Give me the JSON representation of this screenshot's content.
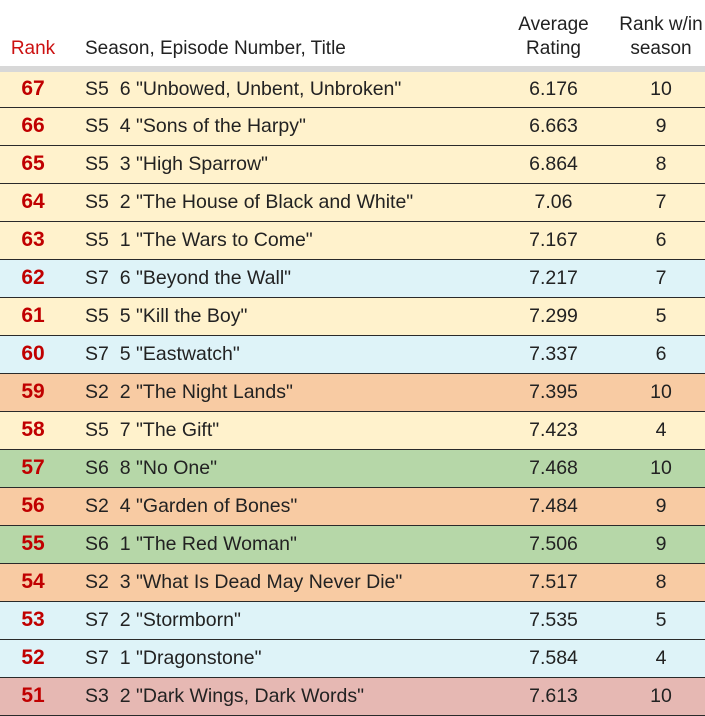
{
  "header": {
    "rank": "Rank",
    "title": "Season, Episode Number, Title",
    "avg_line1": "Average",
    "avg_line2": "Rating",
    "rws_line1": "Rank w/in",
    "rws_line2": "season"
  },
  "row_colors": {
    "S2": "#f8cba3",
    "S3": "#e6b8b3",
    "S5": "#fff2cc",
    "S6": "#b6d7a8",
    "S7": "#def3f8"
  },
  "rows": [
    {
      "rank": "67",
      "season": "S5",
      "episode": "6",
      "title": "\"Unbowed, Unbent, Unbroken\"",
      "avg": "6.176",
      "rank_in_season": "10"
    },
    {
      "rank": "66",
      "season": "S5",
      "episode": "4",
      "title": "\"Sons of the Harpy\"",
      "avg": "6.663",
      "rank_in_season": "9"
    },
    {
      "rank": "65",
      "season": "S5",
      "episode": "3",
      "title": "\"High Sparrow\"",
      "avg": "6.864",
      "rank_in_season": "8"
    },
    {
      "rank": "64",
      "season": "S5",
      "episode": "2",
      "title": "\"The House of Black and White\"",
      "avg": "7.06",
      "rank_in_season": "7"
    },
    {
      "rank": "63",
      "season": "S5",
      "episode": "1",
      "title": "\"The Wars to Come\"",
      "avg": "7.167",
      "rank_in_season": "6"
    },
    {
      "rank": "62",
      "season": "S7",
      "episode": "6",
      "title": "\"Beyond the Wall\"",
      "avg": "7.217",
      "rank_in_season": "7"
    },
    {
      "rank": "61",
      "season": "S5",
      "episode": "5",
      "title": "\"Kill the Boy\"",
      "avg": "7.299",
      "rank_in_season": "5"
    },
    {
      "rank": "60",
      "season": "S7",
      "episode": "5",
      "title": "\"Eastwatch\"",
      "avg": "7.337",
      "rank_in_season": "6"
    },
    {
      "rank": "59",
      "season": "S2",
      "episode": "2",
      "title": "\"The Night Lands\"",
      "avg": "7.395",
      "rank_in_season": "10"
    },
    {
      "rank": "58",
      "season": "S5",
      "episode": "7",
      "title": "\"The Gift\"",
      "avg": "7.423",
      "rank_in_season": "4"
    },
    {
      "rank": "57",
      "season": "S6",
      "episode": "8",
      "title": "\"No One\"",
      "avg": "7.468",
      "rank_in_season": "10"
    },
    {
      "rank": "56",
      "season": "S2",
      "episode": "4",
      "title": "\"Garden of Bones\"",
      "avg": "7.484",
      "rank_in_season": "9"
    },
    {
      "rank": "55",
      "season": "S6",
      "episode": "1",
      "title": "\"The Red Woman\"",
      "avg": "7.506",
      "rank_in_season": "9"
    },
    {
      "rank": "54",
      "season": "S2",
      "episode": "3",
      "title": "\"What Is Dead May Never Die\"",
      "avg": "7.517",
      "rank_in_season": "8"
    },
    {
      "rank": "53",
      "season": "S7",
      "episode": "2",
      "title": "\"Stormborn\"",
      "avg": "7.535",
      "rank_in_season": "5"
    },
    {
      "rank": "52",
      "season": "S7",
      "episode": "1",
      "title": "\"Dragonstone\"",
      "avg": "7.584",
      "rank_in_season": "4"
    },
    {
      "rank": "51",
      "season": "S3",
      "episode": "2",
      "title": "\"Dark Wings, Dark Words\"",
      "avg": "7.613",
      "rank_in_season": "10"
    }
  ]
}
